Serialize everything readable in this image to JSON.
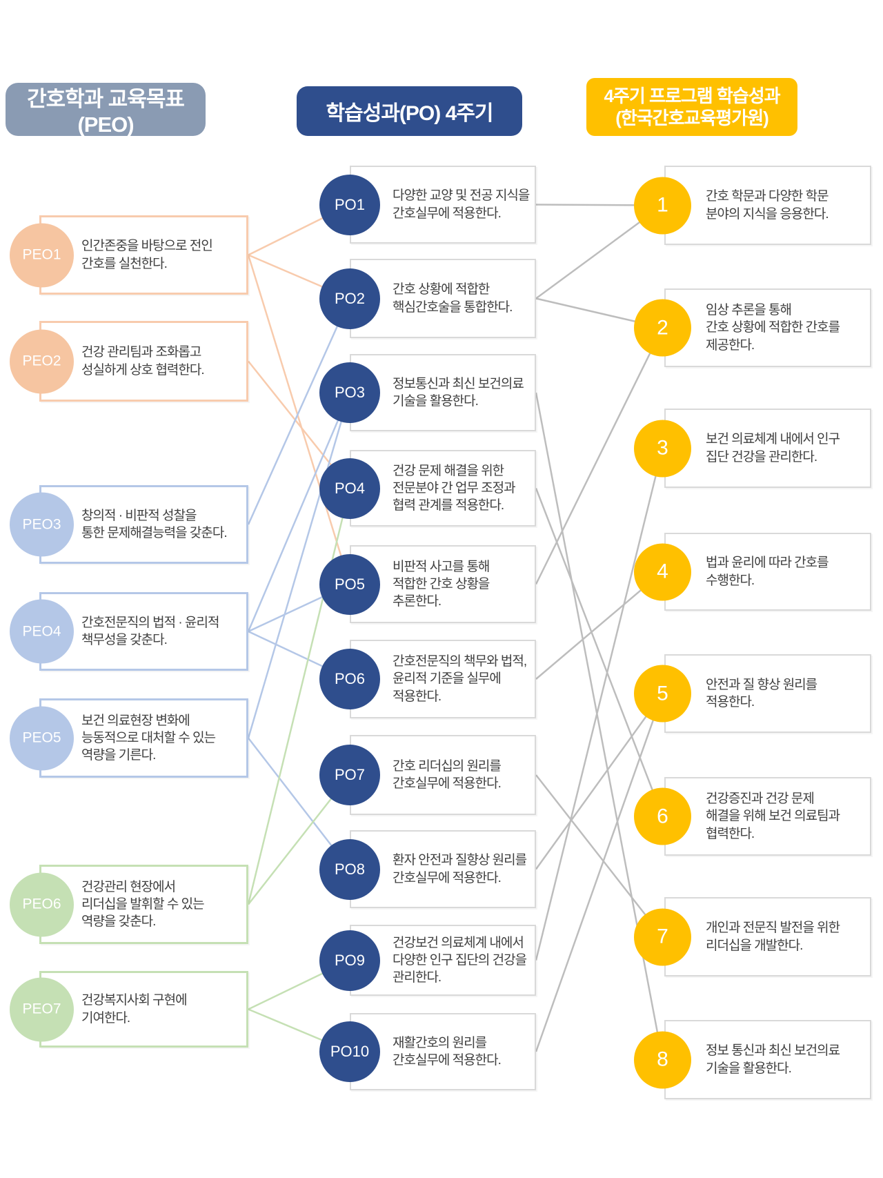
{
  "columns": {
    "peo": {
      "header": "간호학과 교육목표 (PEO)",
      "header_bg": "#8a9bb3",
      "items": [
        {
          "id": "PEO1",
          "theme": "peach",
          "text": "인간존중을 바탕으로 전인\n간호를 실천한다."
        },
        {
          "id": "PEO2",
          "theme": "peach",
          "text": "건강 관리팀과 조화롭고\n성실하게 상호 협력한다."
        },
        {
          "id": "PEO3",
          "theme": "blue",
          "text": "창의적 · 비판적 성찰을\n통한 문제해결능력을 갖춘다."
        },
        {
          "id": "PEO4",
          "theme": "blue",
          "text": "간호전문직의 법적 · 윤리적\n책무성을 갖춘다."
        },
        {
          "id": "PEO5",
          "theme": "blue",
          "text": "보건 의료현장 변화에\n능동적으로 대처할 수 있는\n역량을 기른다."
        },
        {
          "id": "PEO6",
          "theme": "green",
          "text": "건강관리 현장에서\n리더십을 발휘할 수 있는\n역량을 갖춘다."
        },
        {
          "id": "PEO7",
          "theme": "green",
          "text": "건강복지사회 구현에\n기여한다."
        }
      ]
    },
    "po": {
      "header": "학습성과(PO) 4주기",
      "header_bg": "#2f4e8d",
      "items": [
        {
          "id": "PO1",
          "text": "다양한 교양 및 전공 지식을\n간호실무에 적용한다."
        },
        {
          "id": "PO2",
          "text": "간호 상황에 적합한\n핵심간호술을 통합한다."
        },
        {
          "id": "PO3",
          "text": "정보통신과 최신 보건의료\n기술을 활용한다."
        },
        {
          "id": "PO4",
          "text": "건강 문제 해결을 위한\n전문분야 간 업무 조정과\n협력 관계를 적용한다."
        },
        {
          "id": "PO5",
          "text": "비판적 사고를 통해\n적합한 간호 상황을\n추론한다."
        },
        {
          "id": "PO6",
          "text": "간호전문직의 책무와 법적,\n윤리적 기준을 실무에\n적용한다."
        },
        {
          "id": "PO7",
          "text": "간호 리더십의 원리를\n간호실무에 적용한다."
        },
        {
          "id": "PO8",
          "text": "환자 안전과 질향상 원리를\n간호실무에 적용한다."
        },
        {
          "id": "PO9",
          "text": "건강보건 의료체계 내에서\n다양한 인구 집단의 건강을\n관리한다."
        },
        {
          "id": "PO10",
          "text": "재활간호의 원리를\n간호실무에 적용한다."
        }
      ]
    },
    "kabone": {
      "header_line1": "4주기 프로그램 학습성과",
      "header_line2": "(한국간호교육평가원)",
      "header_bg": "#ffc000",
      "items": [
        {
          "id": "1",
          "text": "간호 학문과 다양한 학문\n분야의 지식을 응용한다."
        },
        {
          "id": "2",
          "text": "임상 추론을 통해\n간호 상황에 적합한 간호를\n제공한다."
        },
        {
          "id": "3",
          "text": "보건 의료체계 내에서 인구\n집단 건강을 관리한다."
        },
        {
          "id": "4",
          "text": "법과 윤리에 따라 간호를\n수행한다."
        },
        {
          "id": "5",
          "text": "안전과 질 향상 원리를\n적용한다."
        },
        {
          "id": "6",
          "text": "건강증진과 건강 문제\n해결을 위해 보건 의료팀과\n협력한다."
        },
        {
          "id": "7",
          "text": "개인과 전문직 발전을 위한\n리더십을 개발한다."
        },
        {
          "id": "8",
          "text": "정보 통신과 최신 보건의료\n기술을 활용한다."
        }
      ]
    }
  },
  "connections": {
    "line_colors": {
      "peach": "#f8cbad",
      "blue": "#b4c7e7",
      "green": "#c5e0b4",
      "gray": "#bdbdbd"
    },
    "peo_po": [
      {
        "from": "PEO1",
        "to": "PO1",
        "color": "#f8cbad"
      },
      {
        "from": "PEO1",
        "to": "PO2",
        "color": "#f8cbad"
      },
      {
        "from": "PEO1",
        "to": "PO5",
        "color": "#f8cbad"
      },
      {
        "from": "PEO2",
        "to": "PO4",
        "color": "#f8cbad"
      },
      {
        "from": "PEO3",
        "to": "PO2",
        "color": "#b4c7e7"
      },
      {
        "from": "PEO4",
        "to": "PO3",
        "color": "#b4c7e7"
      },
      {
        "from": "PEO4",
        "to": "PO5",
        "color": "#b4c7e7"
      },
      {
        "from": "PEO4",
        "to": "PO6",
        "color": "#b4c7e7"
      },
      {
        "from": "PEO5",
        "to": "PO3",
        "color": "#b4c7e7"
      },
      {
        "from": "PEO5",
        "to": "PO8",
        "color": "#b4c7e7"
      },
      {
        "from": "PEO6",
        "to": "PO4",
        "color": "#c5e0b4"
      },
      {
        "from": "PEO6",
        "to": "PO7",
        "color": "#c5e0b4"
      },
      {
        "from": "PEO7",
        "to": "PO9",
        "color": "#c5e0b4"
      },
      {
        "from": "PEO7",
        "to": "PO10",
        "color": "#c5e0b4"
      }
    ],
    "po_kabone": [
      {
        "from": "PO1",
        "to": "1",
        "color": "#bdbdbd"
      },
      {
        "from": "PO2",
        "to": "1",
        "color": "#bdbdbd"
      },
      {
        "from": "PO2",
        "to": "2",
        "color": "#bdbdbd"
      },
      {
        "from": "PO5",
        "to": "2",
        "color": "#bdbdbd"
      },
      {
        "from": "PO9",
        "to": "3",
        "color": "#bdbdbd"
      },
      {
        "from": "PO6",
        "to": "4",
        "color": "#bdbdbd"
      },
      {
        "from": "PO8",
        "to": "5",
        "color": "#bdbdbd"
      },
      {
        "from": "PO10",
        "to": "5",
        "color": "#bdbdbd"
      },
      {
        "from": "PO4",
        "to": "6",
        "color": "#bdbdbd"
      },
      {
        "from": "PO7",
        "to": "7",
        "color": "#bdbdbd"
      },
      {
        "from": "PO3",
        "to": "8",
        "color": "#bdbdbd"
      }
    ]
  }
}
